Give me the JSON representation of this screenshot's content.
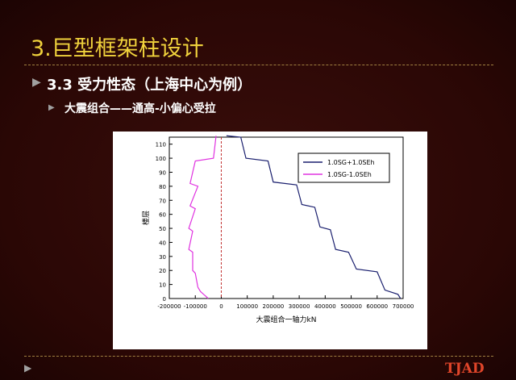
{
  "slide": {
    "title": "3.巨型框架柱设计",
    "bullet": "3.3 受力性态（上海中心为例）",
    "sub_bullet": "大震组合——通高-小偏心受拉",
    "footer": "TJAD"
  },
  "chart_data": {
    "type": "line",
    "xlabel": "大震组合一轴力kN",
    "ylabel": "楼层",
    "xlim": [
      -200000,
      700000
    ],
    "ylim": [
      0,
      115
    ],
    "xticks": [
      -200000,
      -100000,
      0,
      100000,
      200000,
      300000,
      400000,
      500000,
      600000,
      700000
    ],
    "yticks": [
      0,
      10,
      20,
      30,
      40,
      50,
      60,
      70,
      80,
      90,
      100,
      110
    ],
    "reference_line_x": 0,
    "legend": "upper right",
    "series": [
      {
        "name": "1.0SG+1.0SEh",
        "color": "#1a1f6e",
        "x": [
          20000,
          75000,
          95000,
          180000,
          200000,
          290000,
          310000,
          360000,
          380000,
          420000,
          440000,
          490000,
          520000,
          600000,
          630000,
          680000,
          690000
        ],
        "values": [
          116,
          115,
          100,
          98,
          83,
          81,
          67,
          65,
          51,
          49,
          35,
          33,
          21,
          19,
          6,
          3,
          0
        ]
      },
      {
        "name": "1.0SG-1.0SEh",
        "color": "#e033e0",
        "x": [
          -20000,
          -30000,
          -100000,
          -120000,
          -90000,
          -120000,
          -100000,
          -125000,
          -110000,
          -125000,
          -110000,
          -110000,
          -100000,
          -90000,
          -80000,
          -50000
        ],
        "values": [
          116,
          100,
          98,
          82,
          80,
          66,
          64,
          50,
          48,
          35,
          33,
          20,
          18,
          8,
          5,
          0
        ]
      }
    ]
  }
}
